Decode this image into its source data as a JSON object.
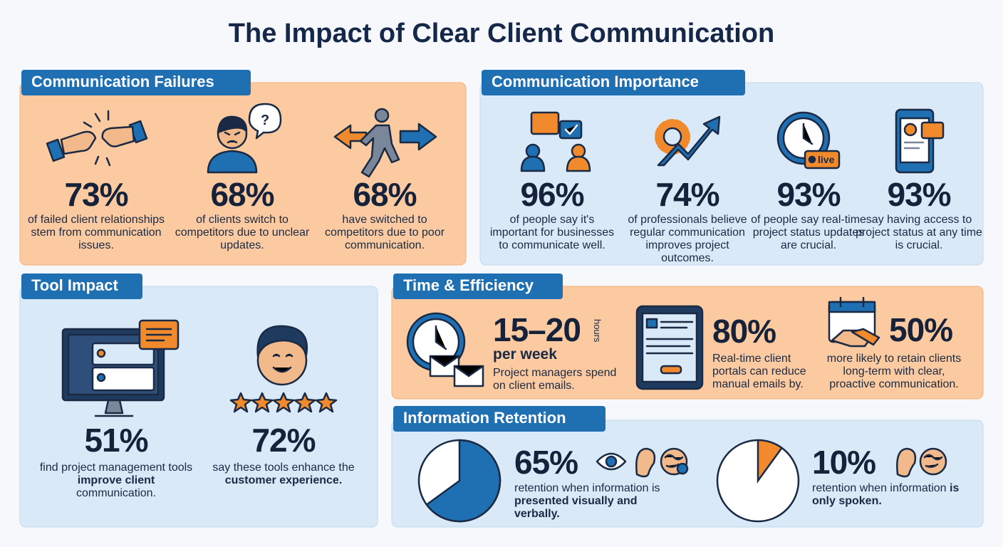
{
  "title": "The Impact of Clear Client Communication",
  "sections": {
    "failures": {
      "heading": "Communication Failures",
      "stats": [
        {
          "value": "73%",
          "text": "of failed client relationships stem from communication issues."
        },
        {
          "value": "68%",
          "text": "of clients switch to competitors due to unclear updates.",
          "icon_label": "?"
        },
        {
          "value": "68%",
          "text": "have switched to competitors due to poor communication."
        }
      ]
    },
    "importance": {
      "heading": "Communication Importance",
      "stats": [
        {
          "value": "96%",
          "text": "of people say it's important for businesses to communicate well."
        },
        {
          "value": "74%",
          "text": "of professionals believe regular communication improves project outcomes."
        },
        {
          "value": "93%",
          "text": "of people say real-time project status updates are crucial.",
          "icon_label": "live"
        },
        {
          "value": "93%",
          "text": "say having access to project status at any time is crucial."
        }
      ]
    },
    "tool_impact": {
      "heading": "Tool Impact",
      "stats": [
        {
          "value": "51%",
          "text_before": "find project management tools ",
          "bold": "improve client",
          "text_after": " communication."
        },
        {
          "value": "72%",
          "text_before": "say these tools enhance the ",
          "bold": "customer experience."
        }
      ]
    },
    "time": {
      "heading": "Time & Efficiency",
      "stats": [
        {
          "value": "15–20",
          "unit": "hours",
          "sub": "per week",
          "text": "Project managers spend on client emails."
        },
        {
          "value": "80%",
          "text": "Real-time client portals can reduce manual emails by."
        },
        {
          "value": "50%",
          "text": "more likely to retain clients long-term with clear, proactive communication."
        }
      ]
    },
    "retention": {
      "heading": "Information Retention",
      "stats": [
        {
          "percent": {
            "value": 65,
            "label": "65%"
          },
          "text_before": "retention when information is ",
          "bold": "presented visually and verbally."
        },
        {
          "percent": {
            "value": 10,
            "label": "10%"
          },
          "text_before": "retention when information ",
          "bold": "is only spoken."
        }
      ]
    }
  }
}
